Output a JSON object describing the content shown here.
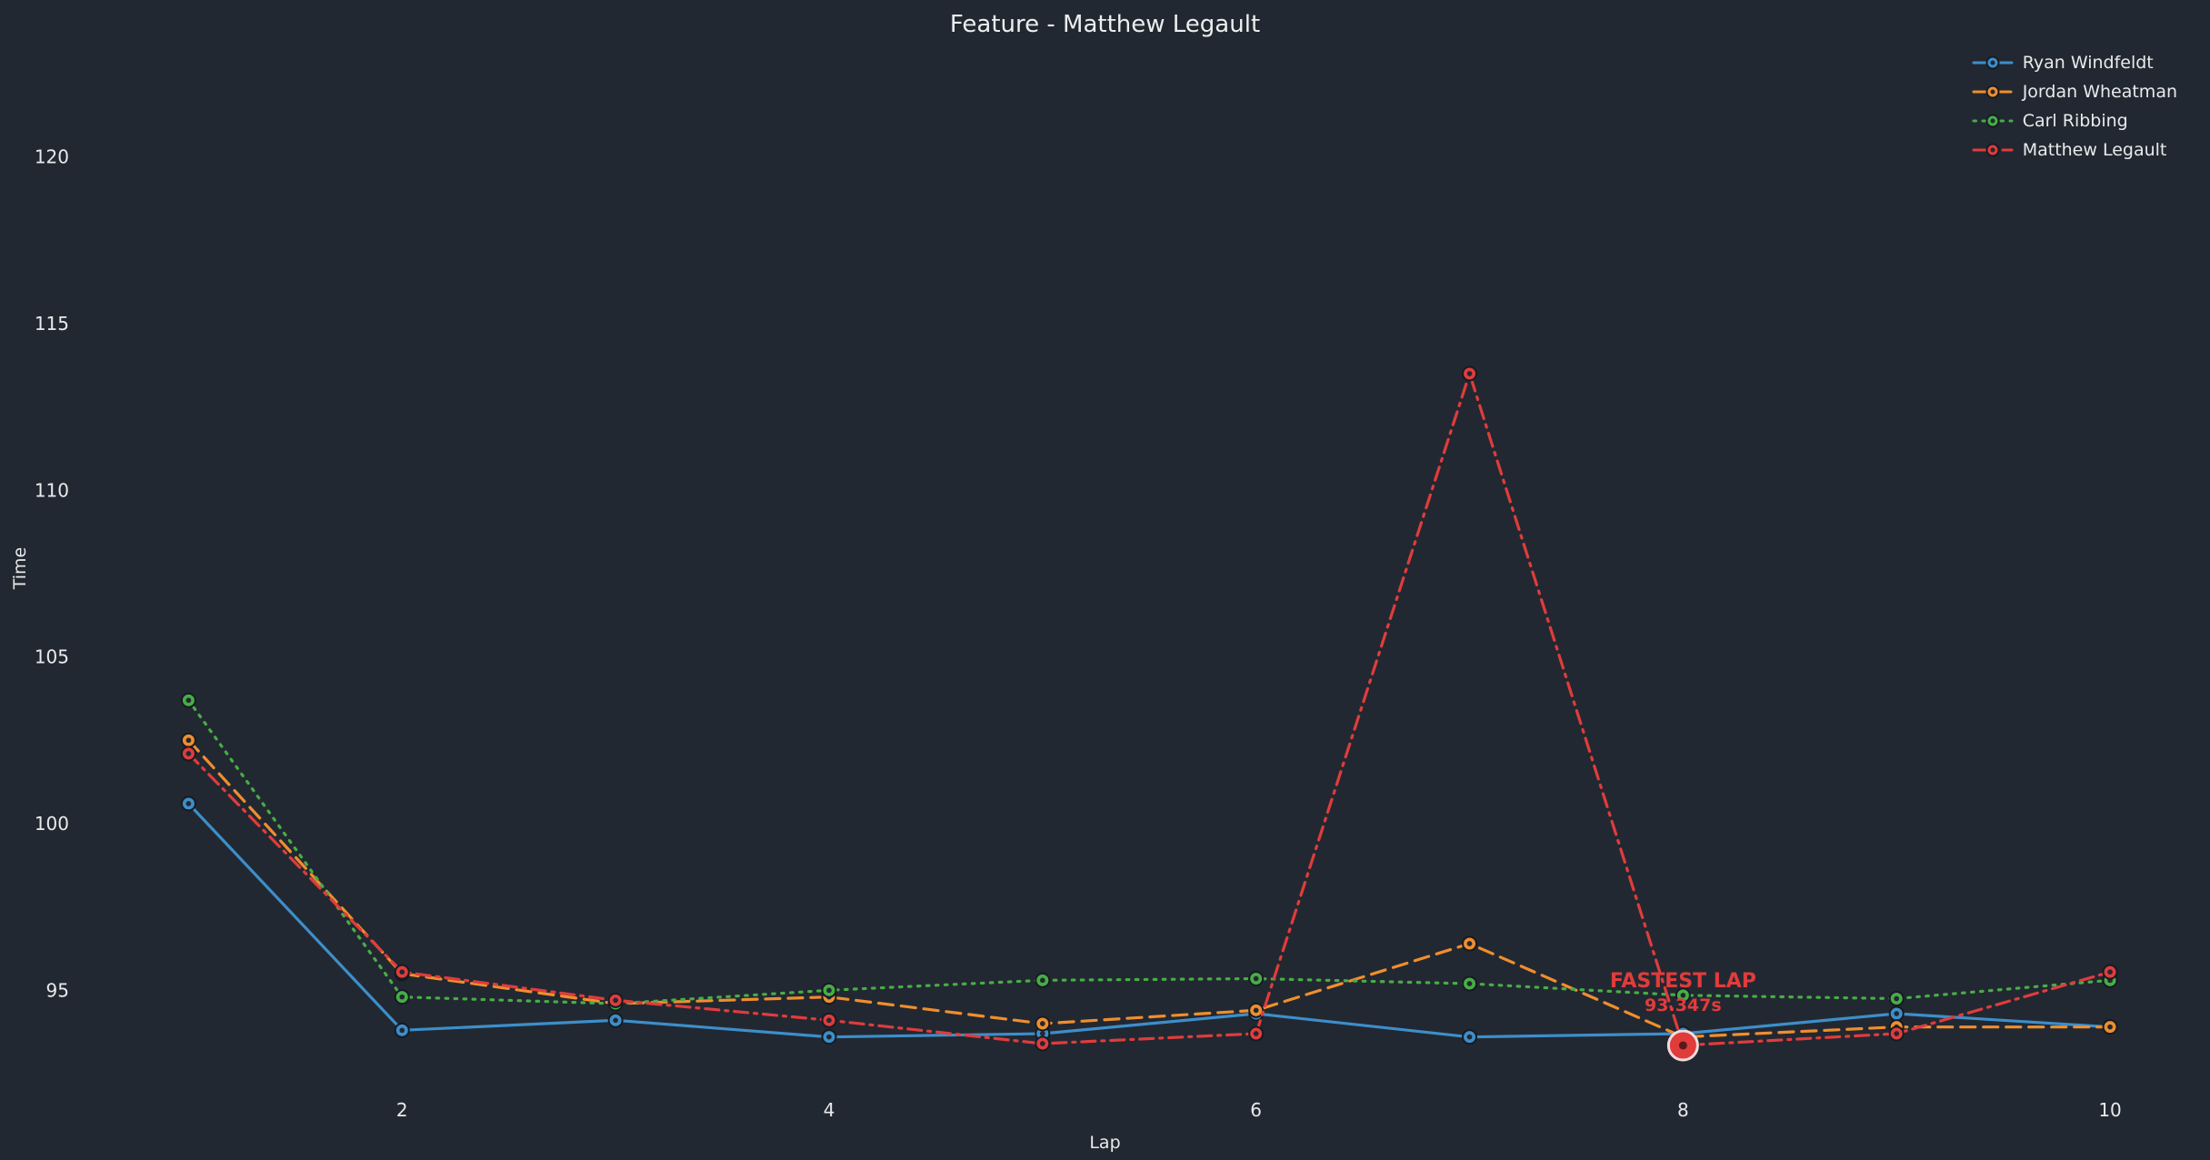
{
  "colors": {
    "background": "#222831",
    "text": "#e8eaec",
    "annotation": "#e03c3c",
    "marker_center": "#222831",
    "marker_edge": "#161b22",
    "fastest_ring": "#f0dcdc",
    "fastest_center": "#5a1a1a"
  },
  "chart_data": {
    "type": "line",
    "title": "Feature - Matthew Legault",
    "xlabel": "Lap",
    "ylabel": "Time",
    "x": [
      1,
      2,
      3,
      4,
      5,
      6,
      7,
      8,
      9,
      10
    ],
    "xticks": [
      2,
      4,
      6,
      8,
      10
    ],
    "yticks": [
      95,
      100,
      105,
      110,
      115,
      120
    ],
    "xlim": [
      0.5,
      10.4
    ],
    "ylim": [
      92.8,
      122.8
    ],
    "grid": false,
    "legend_position": "upper right",
    "series": [
      {
        "name": "Ryan Windfeldt",
        "color": "#3d8ecb",
        "style": "solid",
        "marker": "circle",
        "values": [
          100.6,
          93.8,
          94.1,
          93.6,
          93.7,
          94.3,
          93.6,
          93.7,
          94.3,
          93.9
        ]
      },
      {
        "name": "Jordan Wheatman",
        "color": "#ef8e2e",
        "style": "dashed",
        "marker": "circle",
        "values": [
          102.5,
          95.5,
          94.6,
          94.8,
          94.0,
          94.4,
          96.4,
          93.6,
          93.9,
          93.9
        ]
      },
      {
        "name": "Carl Ribbing",
        "color": "#47ad47",
        "style": "dotted",
        "marker": "circle",
        "values": [
          103.7,
          94.8,
          94.6,
          95.0,
          95.3,
          95.35,
          95.2,
          94.85,
          94.75,
          95.3
        ]
      },
      {
        "name": "Matthew Legault",
        "color": "#e03c3c",
        "style": "dashdot",
        "marker": "circle",
        "values": [
          102.1,
          95.55,
          94.7,
          94.1,
          93.4,
          93.7,
          113.5,
          93.347,
          93.7,
          95.55
        ]
      }
    ],
    "annotation": {
      "label": "FASTEST LAP",
      "value_label": "93.347s",
      "x": 8,
      "y": 93.347,
      "series": "Matthew Legault"
    }
  }
}
